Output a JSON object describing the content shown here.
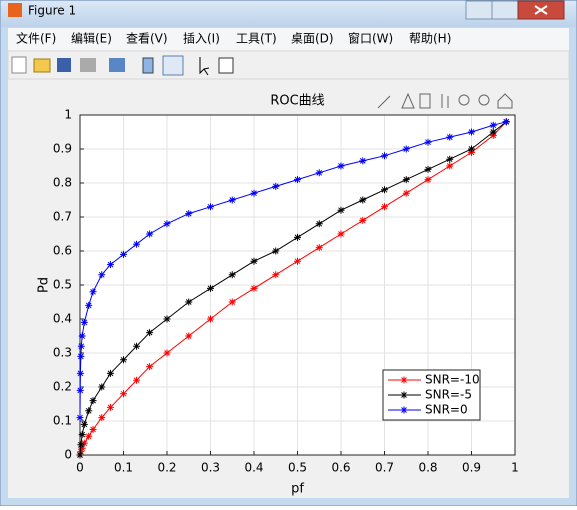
{
  "window": {
    "title": "Figure 1",
    "menu": [
      "文件(F)",
      "编辑(E)",
      "查看(V)",
      "插入(I)",
      "工具(T)",
      "桌面(D)",
      "窗口(W)",
      "帮助(H)"
    ]
  },
  "chart_data": {
    "type": "line",
    "title": "ROC曲线",
    "x_label": "pf",
    "y_label": "Pd",
    "xlim": [
      0,
      1
    ],
    "ylim": [
      0,
      1
    ],
    "xticks": [
      0,
      0.1,
      0.2,
      0.3,
      0.4,
      0.5,
      0.6,
      0.7,
      0.8,
      0.9,
      1
    ],
    "yticks": [
      0,
      0.1,
      0.2,
      0.3,
      0.4,
      0.5,
      0.6,
      0.7,
      0.8,
      0.9,
      1
    ],
    "grid": true,
    "legend": "southeast",
    "series": [
      {
        "name": "SNR=-10",
        "color": "#ff0000",
        "x": [
          0,
          0.002,
          0.005,
          0.01,
          0.02,
          0.03,
          0.05,
          0.07,
          0.1,
          0.13,
          0.16,
          0.2,
          0.25,
          0.3,
          0.35,
          0.4,
          0.45,
          0.5,
          0.55,
          0.6,
          0.65,
          0.7,
          0.75,
          0.8,
          0.85,
          0.9,
          0.95,
          0.98
        ],
        "values": [
          0,
          0.01,
          0.02,
          0.035,
          0.055,
          0.075,
          0.11,
          0.14,
          0.18,
          0.22,
          0.26,
          0.3,
          0.35,
          0.4,
          0.45,
          0.49,
          0.53,
          0.57,
          0.61,
          0.65,
          0.69,
          0.73,
          0.77,
          0.81,
          0.85,
          0.89,
          0.94,
          0.98
        ]
      },
      {
        "name": "SNR=-5",
        "color": "#000000",
        "x": [
          0,
          0.002,
          0.005,
          0.01,
          0.02,
          0.03,
          0.05,
          0.07,
          0.1,
          0.13,
          0.16,
          0.2,
          0.25,
          0.3,
          0.35,
          0.4,
          0.45,
          0.5,
          0.55,
          0.6,
          0.65,
          0.7,
          0.75,
          0.8,
          0.85,
          0.9,
          0.95,
          0.98
        ],
        "values": [
          0,
          0.03,
          0.06,
          0.09,
          0.13,
          0.16,
          0.2,
          0.24,
          0.28,
          0.32,
          0.36,
          0.4,
          0.45,
          0.49,
          0.53,
          0.57,
          0.6,
          0.64,
          0.68,
          0.72,
          0.75,
          0.78,
          0.81,
          0.84,
          0.87,
          0.9,
          0.95,
          0.98
        ]
      },
      {
        "name": "SNR=0",
        "color": "#0000ff",
        "x": [
          0,
          0.0005,
          0.001,
          0.002,
          0.003,
          0.005,
          0.01,
          0.02,
          0.03,
          0.05,
          0.07,
          0.1,
          0.13,
          0.16,
          0.2,
          0.25,
          0.3,
          0.35,
          0.4,
          0.45,
          0.5,
          0.55,
          0.6,
          0.65,
          0.7,
          0.75,
          0.8,
          0.85,
          0.9,
          0.95,
          0.98
        ],
        "values": [
          0.11,
          0.19,
          0.24,
          0.29,
          0.32,
          0.35,
          0.39,
          0.44,
          0.48,
          0.53,
          0.56,
          0.59,
          0.62,
          0.65,
          0.68,
          0.71,
          0.73,
          0.75,
          0.77,
          0.79,
          0.81,
          0.83,
          0.85,
          0.865,
          0.88,
          0.9,
          0.92,
          0.935,
          0.95,
          0.97,
          0.98
        ]
      }
    ]
  }
}
